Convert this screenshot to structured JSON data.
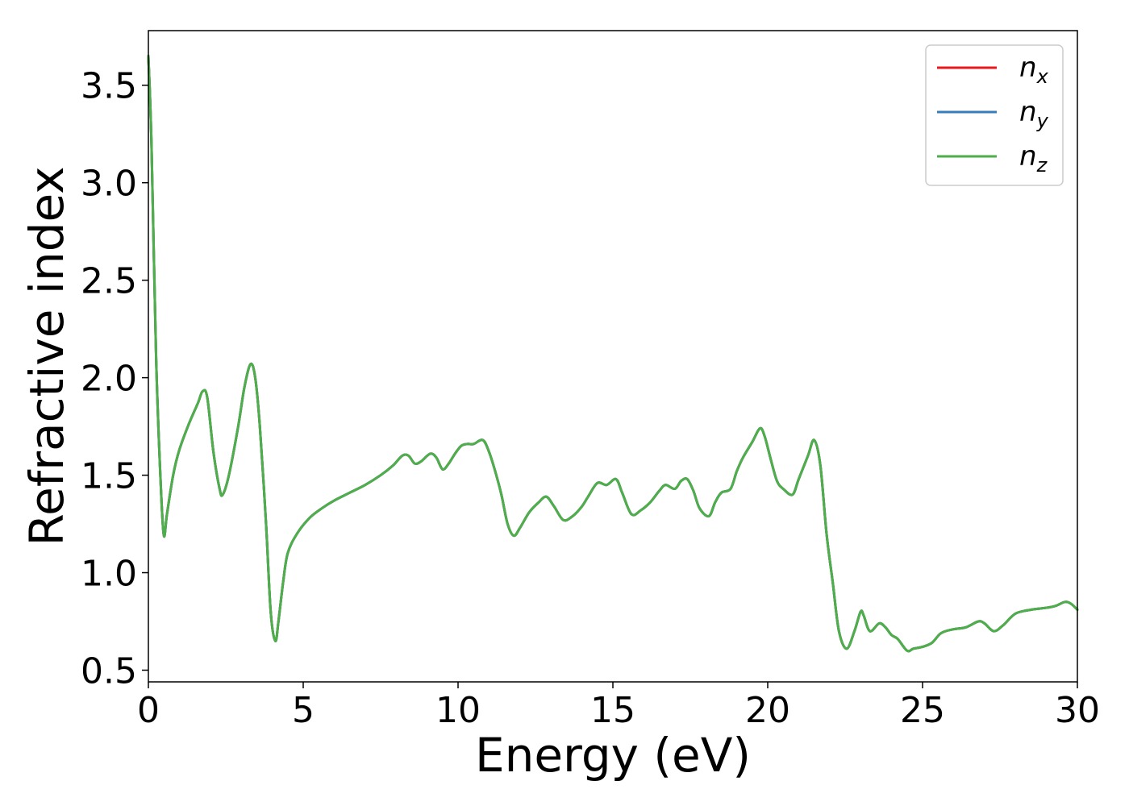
{
  "chart_data": {
    "type": "line",
    "xlabel": "Energy (eV)",
    "ylabel": "Refractive index",
    "xlim": [
      0,
      30
    ],
    "ylim": [
      0.44,
      3.78
    ],
    "xticks": [
      0,
      5,
      10,
      15,
      20,
      25,
      30
    ],
    "xtick_labels": [
      "0",
      "5",
      "10",
      "15",
      "20",
      "25",
      "30"
    ],
    "yticks": [
      0.5,
      1.0,
      1.5,
      2.0,
      2.5,
      3.0,
      3.5
    ],
    "ytick_labels": [
      "0.5",
      "1.0",
      "1.5",
      "2.0",
      "2.5",
      "3.0",
      "3.5"
    ],
    "grid": false,
    "legend_position": "top-right",
    "x": [
      0.0,
      0.1,
      0.25,
      0.4,
      0.5,
      0.6,
      0.8,
      1.0,
      1.3,
      1.6,
      1.75,
      1.9,
      2.1,
      2.3,
      2.4,
      2.6,
      2.9,
      3.1,
      3.3,
      3.45,
      3.6,
      3.8,
      3.95,
      4.1,
      4.2,
      4.35,
      4.5,
      4.8,
      5.2,
      5.6,
      6.0,
      6.5,
      7.0,
      7.5,
      7.9,
      8.2,
      8.4,
      8.6,
      8.8,
      9.1,
      9.3,
      9.5,
      9.7,
      9.9,
      10.1,
      10.3,
      10.5,
      10.8,
      11.0,
      11.2,
      11.4,
      11.6,
      11.8,
      12.0,
      12.3,
      12.6,
      12.85,
      13.1,
      13.4,
      13.7,
      14.0,
      14.2,
      14.5,
      14.8,
      15.1,
      15.3,
      15.6,
      15.9,
      16.2,
      16.5,
      16.7,
      17.0,
      17.2,
      17.4,
      17.6,
      17.8,
      18.1,
      18.3,
      18.5,
      18.8,
      19.0,
      19.2,
      19.5,
      19.75,
      19.9,
      20.1,
      20.3,
      20.5,
      20.8,
      21.0,
      21.3,
      21.5,
      21.7,
      21.9,
      22.1,
      22.3,
      22.55,
      22.8,
      23.0,
      23.1,
      23.3,
      23.6,
      23.8,
      24.0,
      24.2,
      24.5,
      24.7,
      25.0,
      25.3,
      25.6,
      26.0,
      26.4,
      26.8,
      27.0,
      27.3,
      27.6,
      28.0,
      28.5,
      29.0,
      29.3,
      29.6,
      29.8,
      30.0
    ],
    "series": [
      {
        "name": "nx",
        "color": "#e41a1c",
        "values": [
          3.65,
          3.2,
          2.1,
          1.45,
          1.19,
          1.3,
          1.5,
          1.63,
          1.76,
          1.87,
          1.93,
          1.9,
          1.62,
          1.43,
          1.4,
          1.5,
          1.75,
          1.95,
          2.07,
          2.0,
          1.75,
          1.25,
          0.8,
          0.65,
          0.75,
          0.95,
          1.1,
          1.2,
          1.28,
          1.33,
          1.37,
          1.41,
          1.45,
          1.5,
          1.55,
          1.6,
          1.6,
          1.56,
          1.57,
          1.61,
          1.59,
          1.53,
          1.56,
          1.61,
          1.65,
          1.66,
          1.66,
          1.68,
          1.62,
          1.52,
          1.4,
          1.25,
          1.19,
          1.23,
          1.31,
          1.36,
          1.39,
          1.34,
          1.27,
          1.29,
          1.34,
          1.39,
          1.46,
          1.45,
          1.48,
          1.41,
          1.3,
          1.32,
          1.36,
          1.42,
          1.45,
          1.43,
          1.47,
          1.48,
          1.42,
          1.33,
          1.29,
          1.36,
          1.41,
          1.43,
          1.52,
          1.59,
          1.67,
          1.74,
          1.7,
          1.58,
          1.47,
          1.43,
          1.4,
          1.48,
          1.6,
          1.68,
          1.55,
          1.2,
          0.95,
          0.7,
          0.61,
          0.7,
          0.8,
          0.78,
          0.7,
          0.74,
          0.72,
          0.68,
          0.66,
          0.6,
          0.61,
          0.62,
          0.64,
          0.69,
          0.71,
          0.72,
          0.75,
          0.74,
          0.7,
          0.73,
          0.79,
          0.81,
          0.82,
          0.83,
          0.85,
          0.84,
          0.81
        ]
      },
      {
        "name": "ny",
        "color": "#377eb8",
        "values": [
          3.65,
          3.2,
          2.1,
          1.45,
          1.19,
          1.3,
          1.5,
          1.63,
          1.76,
          1.87,
          1.93,
          1.9,
          1.62,
          1.43,
          1.4,
          1.5,
          1.75,
          1.95,
          2.07,
          2.0,
          1.75,
          1.25,
          0.8,
          0.65,
          0.75,
          0.95,
          1.1,
          1.2,
          1.28,
          1.33,
          1.37,
          1.41,
          1.45,
          1.5,
          1.55,
          1.6,
          1.6,
          1.56,
          1.57,
          1.61,
          1.59,
          1.53,
          1.56,
          1.61,
          1.65,
          1.66,
          1.66,
          1.68,
          1.62,
          1.52,
          1.4,
          1.25,
          1.19,
          1.23,
          1.31,
          1.36,
          1.39,
          1.34,
          1.27,
          1.29,
          1.34,
          1.39,
          1.46,
          1.45,
          1.48,
          1.41,
          1.3,
          1.32,
          1.36,
          1.42,
          1.45,
          1.43,
          1.47,
          1.48,
          1.42,
          1.33,
          1.29,
          1.36,
          1.41,
          1.43,
          1.52,
          1.59,
          1.67,
          1.74,
          1.7,
          1.58,
          1.47,
          1.43,
          1.4,
          1.48,
          1.6,
          1.68,
          1.55,
          1.2,
          0.95,
          0.7,
          0.61,
          0.7,
          0.8,
          0.78,
          0.7,
          0.74,
          0.72,
          0.68,
          0.66,
          0.6,
          0.61,
          0.62,
          0.64,
          0.69,
          0.71,
          0.72,
          0.75,
          0.74,
          0.7,
          0.73,
          0.79,
          0.81,
          0.82,
          0.83,
          0.85,
          0.84,
          0.81
        ]
      },
      {
        "name": "nz",
        "color": "#4daf4a",
        "values": [
          3.65,
          3.2,
          2.1,
          1.45,
          1.19,
          1.3,
          1.5,
          1.63,
          1.76,
          1.87,
          1.93,
          1.9,
          1.62,
          1.43,
          1.4,
          1.5,
          1.75,
          1.95,
          2.07,
          2.0,
          1.75,
          1.25,
          0.8,
          0.65,
          0.75,
          0.95,
          1.1,
          1.2,
          1.28,
          1.33,
          1.37,
          1.41,
          1.45,
          1.5,
          1.55,
          1.6,
          1.6,
          1.56,
          1.57,
          1.61,
          1.59,
          1.53,
          1.56,
          1.61,
          1.65,
          1.66,
          1.66,
          1.68,
          1.62,
          1.52,
          1.4,
          1.25,
          1.19,
          1.23,
          1.31,
          1.36,
          1.39,
          1.34,
          1.27,
          1.29,
          1.34,
          1.39,
          1.46,
          1.45,
          1.48,
          1.41,
          1.3,
          1.32,
          1.36,
          1.42,
          1.45,
          1.43,
          1.47,
          1.48,
          1.42,
          1.33,
          1.29,
          1.36,
          1.41,
          1.43,
          1.52,
          1.59,
          1.67,
          1.74,
          1.7,
          1.58,
          1.47,
          1.43,
          1.4,
          1.48,
          1.6,
          1.68,
          1.55,
          1.2,
          0.95,
          0.7,
          0.61,
          0.7,
          0.8,
          0.78,
          0.7,
          0.74,
          0.72,
          0.68,
          0.66,
          0.6,
          0.61,
          0.62,
          0.64,
          0.69,
          0.71,
          0.72,
          0.75,
          0.74,
          0.7,
          0.73,
          0.79,
          0.81,
          0.82,
          0.83,
          0.85,
          0.84,
          0.81
        ]
      }
    ],
    "legend": [
      {
        "base": "n",
        "sub": "x",
        "color": "#e41a1c"
      },
      {
        "base": "n",
        "sub": "y",
        "color": "#377eb8"
      },
      {
        "base": "n",
        "sub": "z",
        "color": "#4daf4a"
      }
    ]
  }
}
